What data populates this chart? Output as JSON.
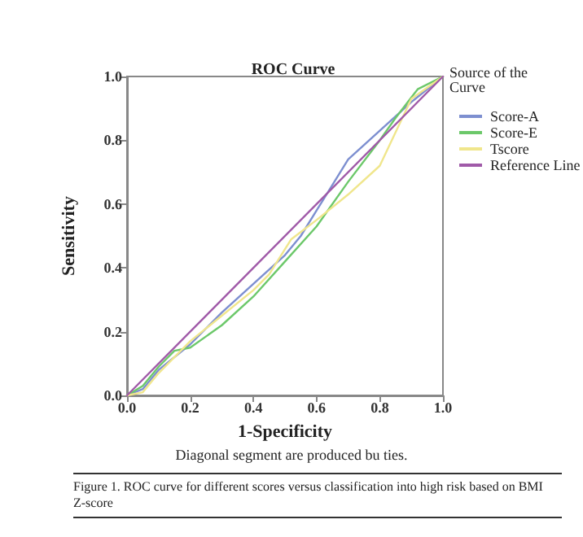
{
  "chart_data": {
    "type": "line",
    "title": "ROC Curve",
    "xlabel": "1-Specificity",
    "ylabel": "Sensitivity",
    "legend_title": "Source of the Curve",
    "series": [
      {
        "name": "Score-A",
        "color": "#7d8fd0",
        "x": [
          0,
          0.05,
          0.1,
          0.2,
          0.3,
          0.4,
          0.5,
          0.55,
          0.6,
          0.65,
          0.7,
          0.8,
          0.9,
          1
        ],
        "values": [
          0,
          0.02,
          0.08,
          0.16,
          0.26,
          0.35,
          0.44,
          0.5,
          0.58,
          0.66,
          0.74,
          0.83,
          0.92,
          1
        ]
      },
      {
        "name": "Score-E",
        "color": "#6cc86a",
        "x": [
          0,
          0.05,
          0.1,
          0.15,
          0.2,
          0.3,
          0.4,
          0.5,
          0.6,
          0.7,
          0.8,
          0.85,
          0.92,
          1
        ],
        "values": [
          0,
          0.03,
          0.09,
          0.14,
          0.15,
          0.22,
          0.31,
          0.42,
          0.53,
          0.67,
          0.8,
          0.87,
          0.96,
          1
        ]
      },
      {
        "name": "Tscore",
        "color": "#f0e68c",
        "x": [
          0,
          0.05,
          0.1,
          0.2,
          0.3,
          0.4,
          0.45,
          0.52,
          0.6,
          0.7,
          0.8,
          0.9,
          1
        ],
        "values": [
          0,
          0.01,
          0.07,
          0.17,
          0.25,
          0.33,
          0.38,
          0.49,
          0.55,
          0.63,
          0.72,
          0.93,
          1
        ]
      },
      {
        "name": "Reference Line",
        "color": "#a05aa8",
        "x": [
          0,
          1
        ],
        "values": [
          0,
          1
        ]
      }
    ],
    "xlim": [
      0,
      1
    ],
    "ylim": [
      0,
      1
    ],
    "xticks": [
      {
        "value": 0,
        "label": "0.0"
      },
      0.2,
      0.4,
      0.6,
      0.8,
      {
        "value": 1,
        "label": "1.0"
      }
    ],
    "yticks": [
      {
        "value": 0,
        "label": "0.0"
      },
      0.2,
      0.4,
      0.6,
      0.8,
      {
        "value": 1,
        "label": "1.0"
      }
    ],
    "grid": false,
    "legend": "top right",
    "marker": "none",
    "line_style": "solid",
    "annotations": [
      "Diagonal segment are produced bu ties.",
      "Figure 1. ROC curve for different scores versus classification into high risk based on BMI Z-score"
    ]
  }
}
